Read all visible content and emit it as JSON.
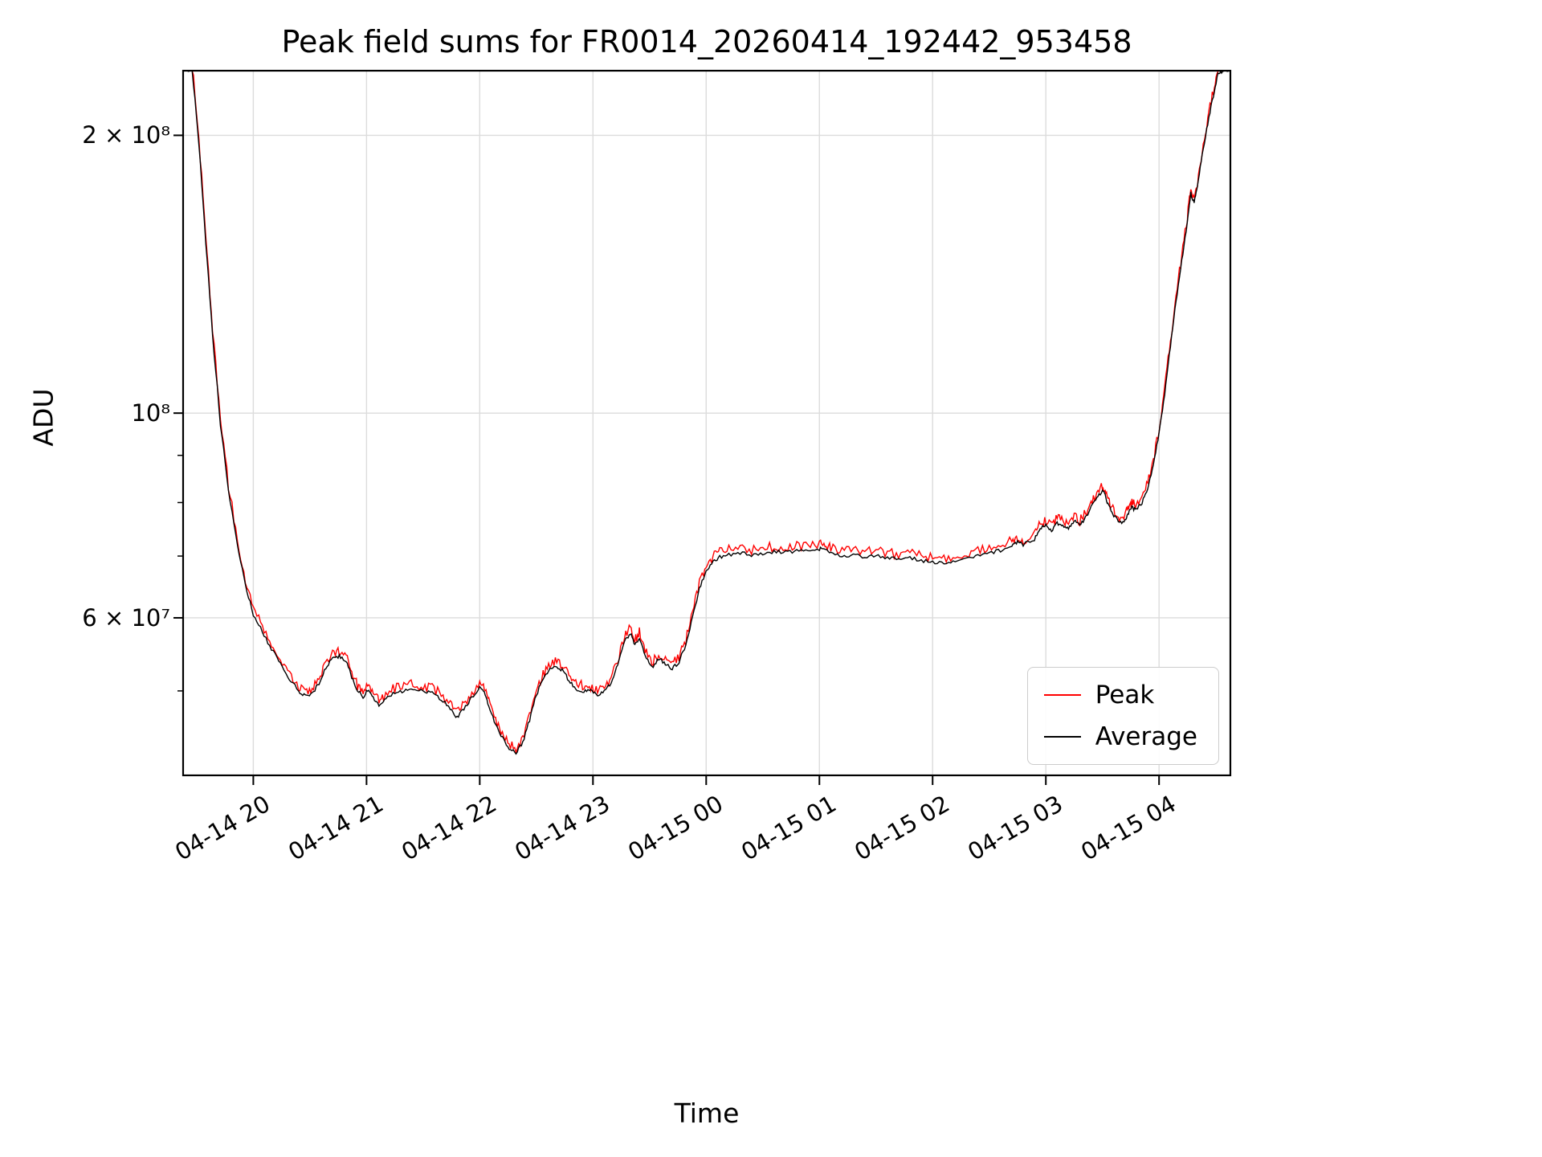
{
  "figure": {
    "title": "Peak field sums for FR0014_20260414_192442_953458",
    "xlabel": "Time",
    "ylabel": "ADU"
  },
  "chart_data": {
    "type": "line",
    "title": "Peak field sums for FR0014_20260414_192442_953458",
    "xlabel": "Time",
    "ylabel": "ADU",
    "yscale": "log",
    "grid": true,
    "x_unit": "hours since 04-14 00:00",
    "xlim_hours": [
      19.38,
      28.63
    ],
    "ylim": [
      40500000,
      235000000
    ],
    "values_scale": 10000000,
    "xticks": [
      {
        "hour": 20,
        "label": "04-14 20"
      },
      {
        "hour": 21,
        "label": "04-14 21"
      },
      {
        "hour": 22,
        "label": "04-14 22"
      },
      {
        "hour": 23,
        "label": "04-14 23"
      },
      {
        "hour": 24,
        "label": "04-15 00"
      },
      {
        "hour": 25,
        "label": "04-15 01"
      },
      {
        "hour": 26,
        "label": "04-15 02"
      },
      {
        "hour": 27,
        "label": "04-15 03"
      },
      {
        "hour": 28,
        "label": "04-15 04"
      }
    ],
    "yticks": [
      {
        "value": 60000000,
        "label": "6 × 10⁷"
      },
      {
        "value": 100000000,
        "label": "10⁸"
      },
      {
        "value": 200000000,
        "label": "2 × 10⁸"
      }
    ],
    "yticks_minor": [
      50000000,
      70000000,
      80000000,
      90000000
    ],
    "legend": {
      "position": "lower right",
      "entries": [
        {
          "label": "Peak",
          "color": "#ff0000"
        },
        {
          "label": "Average",
          "color": "#000000"
        }
      ]
    },
    "series": [
      {
        "name": "Peak",
        "color": "#ff0000",
        "base": "Average",
        "relation": "average plus upward noise",
        "noise_frac_max": 0.025
      },
      {
        "name": "Average",
        "color": "#000000",
        "noise_frac_max": 0.009,
        "points": [
          [
            19.38,
            23.5
          ],
          [
            19.46,
            23.5
          ],
          [
            19.52,
            19.5
          ],
          [
            19.58,
            15.3
          ],
          [
            19.64,
            12.1
          ],
          [
            19.71,
            9.7
          ],
          [
            19.78,
            8.25
          ],
          [
            19.86,
            7.2
          ],
          [
            19.93,
            6.5
          ],
          [
            20.0,
            6.05
          ],
          [
            20.08,
            5.8
          ],
          [
            20.16,
            5.55
          ],
          [
            20.24,
            5.35
          ],
          [
            20.32,
            5.15
          ],
          [
            20.4,
            5.0
          ],
          [
            20.46,
            4.93
          ],
          [
            20.52,
            4.96
          ],
          [
            20.58,
            5.1
          ],
          [
            20.64,
            5.3
          ],
          [
            20.7,
            5.42
          ],
          [
            20.76,
            5.45
          ],
          [
            20.82,
            5.38
          ],
          [
            20.87,
            5.18
          ],
          [
            20.92,
            5.0
          ],
          [
            20.97,
            4.93
          ],
          [
            21.02,
            5.02
          ],
          [
            21.07,
            4.88
          ],
          [
            21.12,
            4.82
          ],
          [
            21.17,
            4.92
          ],
          [
            21.25,
            4.97
          ],
          [
            21.33,
            5.0
          ],
          [
            21.41,
            5.02
          ],
          [
            21.5,
            5.0
          ],
          [
            21.58,
            4.97
          ],
          [
            21.66,
            4.9
          ],
          [
            21.74,
            4.78
          ],
          [
            21.8,
            4.68
          ],
          [
            21.86,
            4.78
          ],
          [
            21.93,
            4.92
          ],
          [
            22.0,
            5.05
          ],
          [
            22.04,
            4.98
          ],
          [
            22.08,
            4.8
          ],
          [
            22.14,
            4.6
          ],
          [
            22.2,
            4.45
          ],
          [
            22.26,
            4.33
          ],
          [
            22.32,
            4.28
          ],
          [
            22.38,
            4.4
          ],
          [
            22.44,
            4.65
          ],
          [
            22.5,
            4.95
          ],
          [
            22.56,
            5.15
          ],
          [
            22.62,
            5.28
          ],
          [
            22.68,
            5.32
          ],
          [
            22.74,
            5.25
          ],
          [
            22.8,
            5.1
          ],
          [
            22.86,
            5.02
          ],
          [
            22.92,
            5.0
          ],
          [
            22.98,
            5.0
          ],
          [
            23.04,
            4.95
          ],
          [
            23.1,
            5.0
          ],
          [
            23.16,
            5.1
          ],
          [
            23.22,
            5.35
          ],
          [
            23.28,
            5.65
          ],
          [
            23.33,
            5.78
          ],
          [
            23.37,
            5.6
          ],
          [
            23.41,
            5.72
          ],
          [
            23.46,
            5.45
          ],
          [
            23.52,
            5.3
          ],
          [
            23.58,
            5.42
          ],
          [
            23.64,
            5.35
          ],
          [
            23.7,
            5.28
          ],
          [
            23.76,
            5.38
          ],
          [
            23.82,
            5.6
          ],
          [
            23.88,
            6.0
          ],
          [
            23.94,
            6.45
          ],
          [
            24.0,
            6.75
          ],
          [
            24.06,
            6.9
          ],
          [
            24.12,
            6.98
          ],
          [
            24.2,
            7.02
          ],
          [
            24.3,
            7.05
          ],
          [
            24.4,
            7.02
          ],
          [
            24.5,
            7.05
          ],
          [
            24.6,
            7.08
          ],
          [
            24.7,
            7.06
          ],
          [
            24.8,
            7.1
          ],
          [
            24.9,
            7.08
          ],
          [
            25.0,
            7.12
          ],
          [
            25.05,
            7.15
          ],
          [
            25.1,
            7.05
          ],
          [
            25.2,
            7.0
          ],
          [
            25.3,
            7.02
          ],
          [
            25.4,
            6.98
          ],
          [
            25.5,
            7.0
          ],
          [
            25.6,
            6.97
          ],
          [
            25.7,
            6.95
          ],
          [
            25.8,
            6.97
          ],
          [
            25.9,
            6.92
          ],
          [
            26.0,
            6.9
          ],
          [
            26.1,
            6.88
          ],
          [
            26.2,
            6.9
          ],
          [
            26.3,
            6.95
          ],
          [
            26.4,
            7.0
          ],
          [
            26.5,
            7.05
          ],
          [
            26.6,
            7.1
          ],
          [
            26.7,
            7.18
          ],
          [
            26.75,
            7.25
          ],
          [
            26.8,
            7.2
          ],
          [
            26.9,
            7.3
          ],
          [
            26.95,
            7.5
          ],
          [
            27.0,
            7.55
          ],
          [
            27.05,
            7.45
          ],
          [
            27.1,
            7.6
          ],
          [
            27.15,
            7.55
          ],
          [
            27.2,
            7.5
          ],
          [
            27.25,
            7.65
          ],
          [
            27.3,
            7.55
          ],
          [
            27.35,
            7.7
          ],
          [
            27.4,
            7.9
          ],
          [
            27.45,
            8.1
          ],
          [
            27.5,
            8.25
          ],
          [
            27.53,
            8.1
          ],
          [
            27.56,
            7.9
          ],
          [
            27.6,
            7.75
          ],
          [
            27.65,
            7.6
          ],
          [
            27.7,
            7.65
          ],
          [
            27.73,
            7.8
          ],
          [
            27.76,
            7.9
          ],
          [
            27.8,
            7.85
          ],
          [
            27.85,
            8.0
          ],
          [
            27.9,
            8.3
          ],
          [
            27.95,
            8.8
          ],
          [
            28.0,
            9.5
          ],
          [
            28.05,
            10.5
          ],
          [
            28.1,
            11.8
          ],
          [
            28.15,
            13.2
          ],
          [
            28.2,
            14.6
          ],
          [
            28.25,
            16.1
          ],
          [
            28.28,
            17.3
          ],
          [
            28.31,
            16.9
          ],
          [
            28.34,
            17.6
          ],
          [
            28.38,
            19.0
          ],
          [
            28.43,
            20.6
          ],
          [
            28.48,
            22.1
          ],
          [
            28.52,
            23.3
          ],
          [
            28.56,
            23.5
          ],
          [
            28.63,
            23.5
          ]
        ]
      }
    ]
  }
}
